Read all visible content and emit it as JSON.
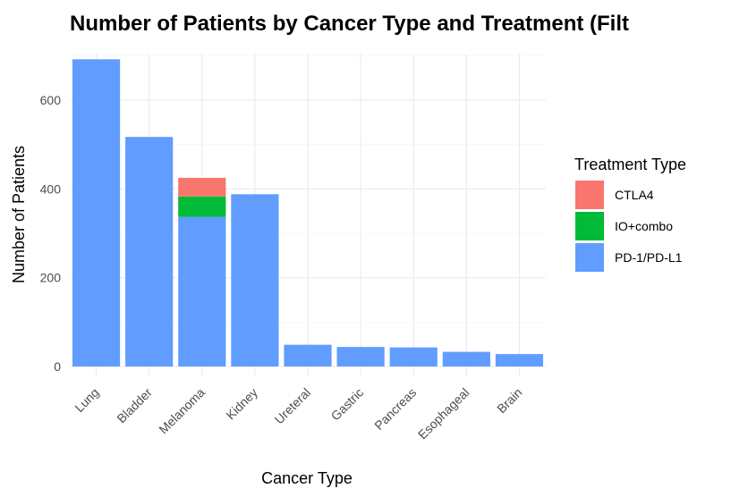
{
  "chart_data": {
    "type": "bar",
    "stacked": true,
    "title": "Number of Patients by Cancer Type and Treatment (Filt",
    "xlabel": "Cancer Type",
    "ylabel": "Number of Patients",
    "categories": [
      "Lung",
      "Bladder",
      "Melanoma",
      "Kidney",
      "Ureteral",
      "Gastric",
      "Pancreas",
      "Esophageal",
      "Brain"
    ],
    "series": [
      {
        "name": "PD-1/PD-L1",
        "color": "#619CFF",
        "values": [
          692,
          517,
          337,
          388,
          49,
          44,
          43,
          33,
          28
        ]
      },
      {
        "name": "IO+combo",
        "color": "#00BA38",
        "values": [
          0,
          0,
          46,
          0,
          0,
          0,
          0,
          0,
          0
        ]
      },
      {
        "name": "CTLA4",
        "color": "#F8766D",
        "values": [
          0,
          0,
          42,
          0,
          0,
          0,
          0,
          0,
          0
        ]
      }
    ],
    "ylim": [
      0,
      735
    ],
    "yticks": [
      0,
      200,
      400,
      600
    ],
    "grid": true,
    "legend": {
      "title": "Treatment Type",
      "position": "right",
      "entries": [
        {
          "label": "CTLA4",
          "color": "#F8766D"
        },
        {
          "label": "IO+combo",
          "color": "#00BA38"
        },
        {
          "label": "PD-1/PD-L1",
          "color": "#619CFF"
        }
      ]
    }
  }
}
